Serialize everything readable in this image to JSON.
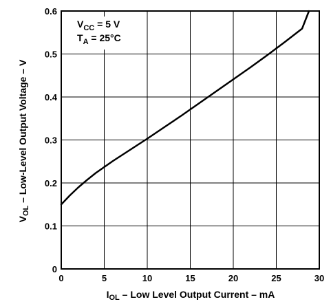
{
  "chart_data": {
    "type": "line",
    "title": "",
    "xlabel": {
      "main": "I",
      "subscript": "OL",
      "rest": " – Low Level Output Current – mA"
    },
    "ylabel": {
      "main": "V",
      "subscript": "OL",
      "rest": " – Low-Level Output Voltage – V"
    },
    "xlim": [
      0,
      30
    ],
    "ylim": [
      0,
      0.6
    ],
    "x_ticks": [
      "0",
      "5",
      "10",
      "15",
      "20",
      "25",
      "30"
    ],
    "y_ticks": [
      "0",
      "0.1",
      "0.2",
      "0.3",
      "0.4",
      "0.5",
      "0.6"
    ],
    "grid": true,
    "legend": "none",
    "annotations": [
      {
        "main": "V",
        "subscript": "CC",
        "rest": " = 5 V"
      },
      {
        "main": "T",
        "subscript": "A",
        "rest": " = 25°C"
      }
    ],
    "series": [
      {
        "x": [
          0,
          1,
          2,
          3,
          4,
          5,
          6,
          7,
          8,
          9,
          10,
          12,
          14,
          15,
          16,
          18,
          20,
          22,
          24,
          25,
          26,
          28,
          28.8
        ],
        "y": [
          0.15,
          0.171,
          0.19,
          0.207,
          0.223,
          0.237,
          0.251,
          0.264,
          0.277,
          0.29,
          0.303,
          0.33,
          0.357,
          0.371,
          0.385,
          0.413,
          0.441,
          0.469,
          0.498,
          0.513,
          0.528,
          0.559,
          0.6
        ]
      }
    ],
    "colors": {
      "line": "#000000",
      "grid": "#000000",
      "background": "#ffffff"
    }
  }
}
